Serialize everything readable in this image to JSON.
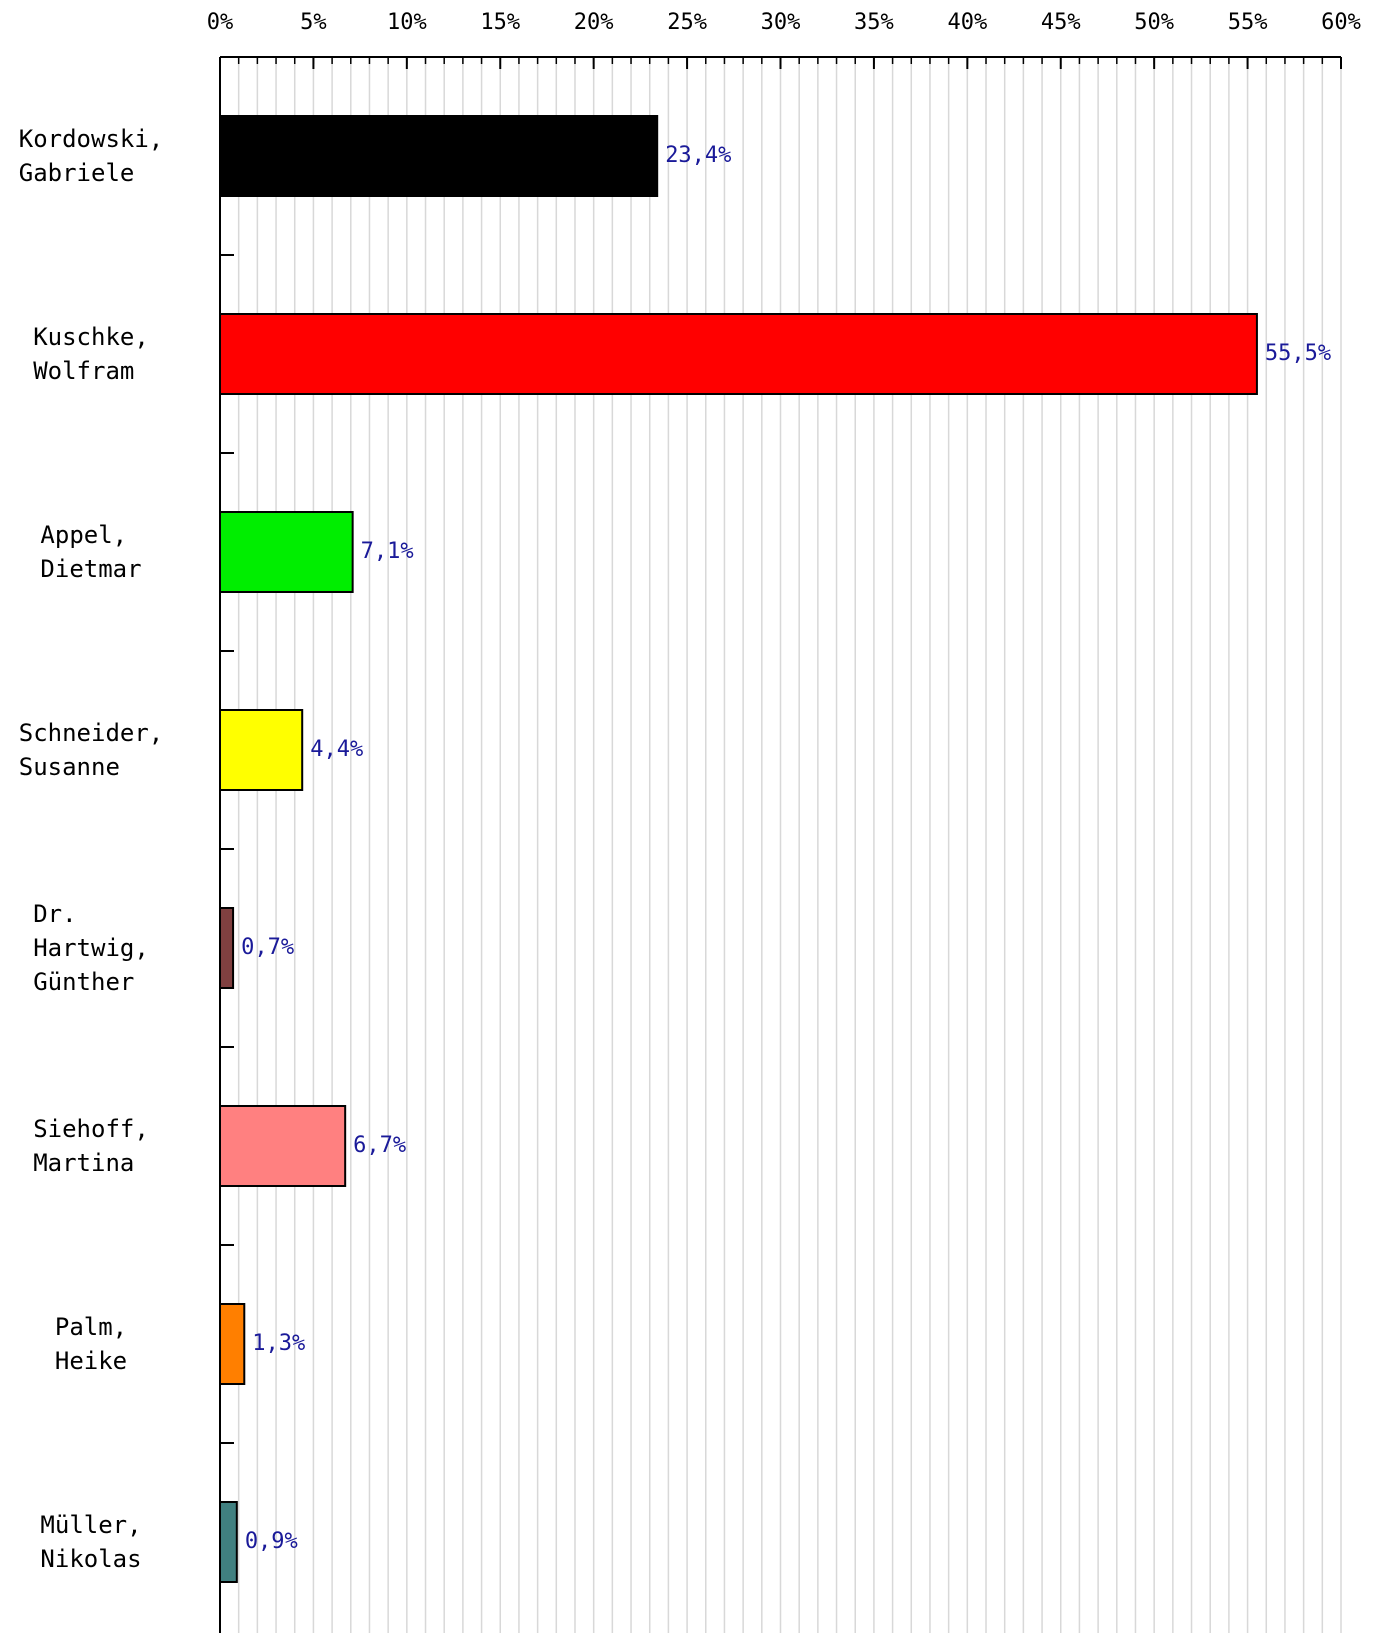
{
  "chart_data": {
    "type": "barh",
    "categories": [
      "Kordowski,\nGabriele",
      "Kuschke,\nWolfram",
      "Appel,\nDietmar",
      "Schneider,\nSusanne",
      "Dr.\nHartwig,\nGünther",
      "Siehoff,\nMartina",
      "Palm,\nHeike",
      "Müller,\nNikolas"
    ],
    "values": [
      23.4,
      55.5,
      7.1,
      4.4,
      0.7,
      6.7,
      1.3,
      0.9
    ],
    "value_labels": [
      "23,4%",
      "55,5%",
      "7,1%",
      "4,4%",
      "0,7%",
      "6,7%",
      "1,3%",
      "0,9%"
    ],
    "colors": [
      "#000000",
      "#ff0000",
      "#00ee00",
      "#ffff00",
      "#804040",
      "#ff8080",
      "#ff7f00",
      "#408080"
    ],
    "xlim": [
      0,
      60
    ],
    "xticks": [
      {
        "value": 0,
        "label": "0%"
      },
      {
        "value": 5,
        "label": "5%"
      },
      {
        "value": 10,
        "label": "10%"
      },
      {
        "value": 15,
        "label": "15%"
      },
      {
        "value": 20,
        "label": "20%"
      },
      {
        "value": 25,
        "label": "25%"
      },
      {
        "value": 30,
        "label": "30%"
      },
      {
        "value": 35,
        "label": "35%"
      },
      {
        "value": 40,
        "label": "40%"
      },
      {
        "value": 45,
        "label": "45%"
      },
      {
        "value": 50,
        "label": "50%"
      },
      {
        "value": 55,
        "label": "55%"
      },
      {
        "value": 60,
        "label": "60%"
      }
    ],
    "xticks_minor": [
      0,
      1,
      2,
      3,
      4,
      5,
      6,
      7,
      8,
      9,
      10,
      11,
      12,
      13,
      14,
      15,
      16,
      17,
      18,
      19,
      20,
      21,
      22,
      23,
      24,
      25,
      26,
      27,
      28,
      29,
      30,
      31,
      32,
      33,
      34,
      35,
      36,
      37,
      38,
      39,
      40,
      41,
      42,
      43,
      44,
      45,
      46,
      47,
      48,
      49,
      50,
      51,
      52,
      53,
      54,
      55,
      56,
      57,
      58,
      59,
      60
    ],
    "grid": true
  }
}
